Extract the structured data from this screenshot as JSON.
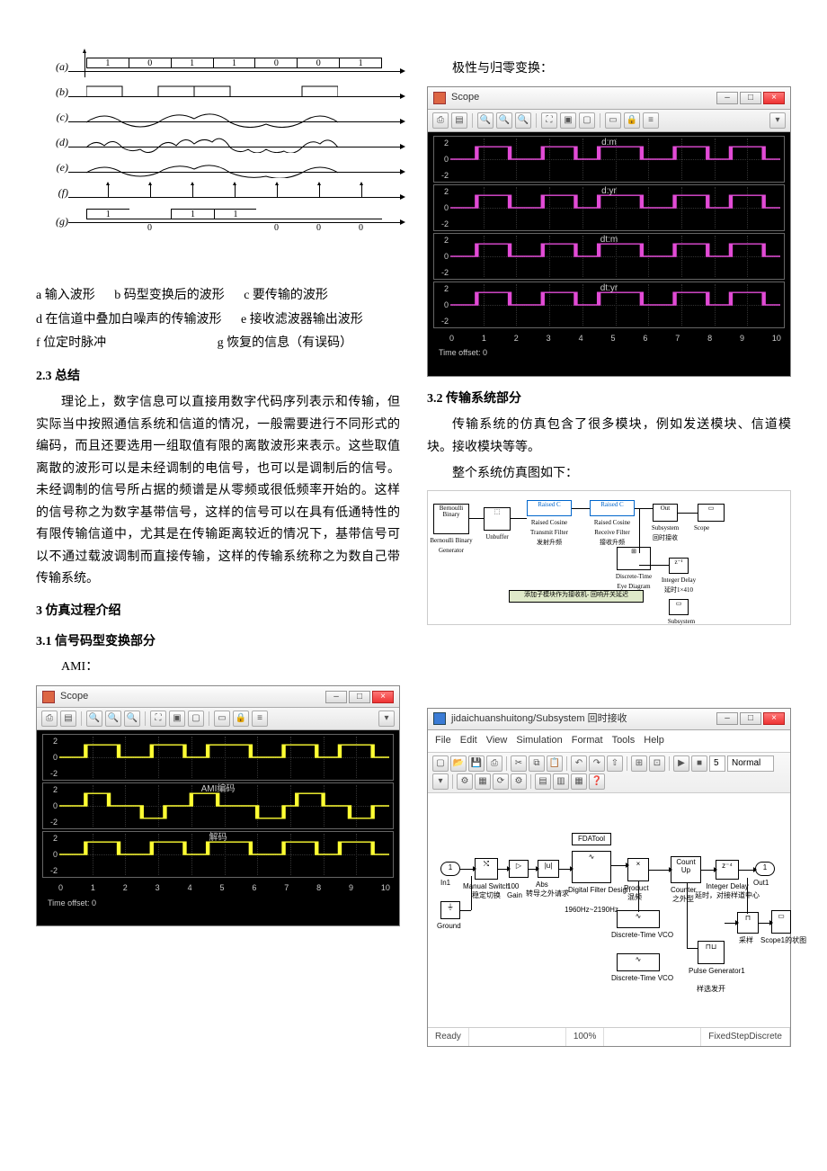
{
  "waveform_diagram": {
    "rows": [
      {
        "label": "(a)",
        "type": "digits",
        "values": [
          "1",
          "0",
          "1",
          "1",
          "0",
          "0",
          "1"
        ]
      },
      {
        "label": "(b)",
        "type": "square"
      },
      {
        "label": "(c)",
        "type": "sine"
      },
      {
        "label": "(d)",
        "type": "noisy"
      },
      {
        "label": "(e)",
        "type": "sine"
      },
      {
        "label": "(f)",
        "type": "arrows"
      },
      {
        "label": "(g)",
        "type": "digits_out",
        "values": [
          "1",
          "",
          "1",
          "1",
          "",
          "",
          ""
        ],
        "below": [
          "",
          "0",
          "",
          "",
          "0",
          "0",
          "0"
        ]
      }
    ]
  },
  "captions": {
    "a": "a 输入波形",
    "b": "b 码型变换后的波形",
    "c": "c 要传输的波形",
    "d": "d 在信道中叠加白噪声的传输波形",
    "e": "e 接收滤波器输出波形",
    "f": "f 位定时脉冲",
    "g": "g 恢复的信息（有误码）"
  },
  "sec23_title": "2.3  总结",
  "sec23_body": "理论上，数字信息可以直接用数字代码序列表示和传输，但实际当中按照通信系统和信道的情况，一般需要进行不同形式的编码，而且还要选用一组取值有限的离散波形来表示。这些取值离散的波形可以是未经调制的电信号，也可以是调制后的信号。未经调制的信号所占据的频谱是从零频或很低频率开始的。这样的信号称之为数字基带信号，这样的信号可以在具有低通特性的有限传输信道中，尤其是在传输距离较近的情况下，基带信号可以不通过载波调制而直接传输，这样的传输系统称之为数自己带传输系统。",
  "sec3_title": "3  仿真过程介绍",
  "sec31_title": "3.1  信号码型变换部分",
  "ami_label": "AMI：",
  "scope_ami": {
    "title": "Scope",
    "panels": [
      {
        "title": ""
      },
      {
        "title": "AMI编码"
      },
      {
        "title": "解码"
      }
    ],
    "yticks": [
      "2",
      "0",
      "-2"
    ],
    "xticks": [
      "0",
      "1",
      "2",
      "3",
      "4",
      "5",
      "6",
      "7",
      "8",
      "9",
      "10"
    ],
    "footer": "Time offset:   0",
    "trace_color": "#ffff33"
  },
  "polarity_label": "极性与归零变换：",
  "scope_pol": {
    "title": "Scope",
    "panels": [
      {
        "title": "d:m"
      },
      {
        "title": "d:yr"
      },
      {
        "title": "dt:m"
      },
      {
        "title": "dt:yr"
      }
    ],
    "yticks": [
      "2",
      "0",
      "-2"
    ],
    "xticks": [
      "0",
      "1",
      "2",
      "3",
      "4",
      "5",
      "6",
      "7",
      "8",
      "9",
      "10"
    ],
    "footer": "Time offset:   0",
    "trace_color": "#e24bd6"
  },
  "sec32_title": "3.2 传输系统部分",
  "sec32_p1": "传输系统的仿真包含了很多模块，例如发送模块、信道模块。接收模块等等。",
  "sec32_p2": "整个系统仿真图如下：",
  "top_diagram": {
    "note": "添加子模块作为接收机- 回响开关延迟"
  },
  "simulink": {
    "title": "jidaichuanshuitong/Subsystem 回时接收",
    "menu": [
      "File",
      "Edit",
      "View",
      "Simulation",
      "Format",
      "Tools",
      "Help"
    ],
    "mode": "Normal",
    "status_left": "Ready",
    "status_mid": "100%",
    "status_right": "FixedStepDiscrete",
    "blocks": {
      "in1": "In1",
      "manual": "Manual Switch",
      "gain": "Gain",
      "abs": "Abs",
      "fda": "FDATool",
      "manual_cn": "稳定切换",
      "abs_cn": "转导之外请求",
      "dfd": "Digital\nFilter Design",
      "dfd_cn": "1960Hz~2190Hz",
      "prod": "Product",
      "prod_cn": "混频",
      "vco1": "Discrete-Time\nVCO",
      "vco2": "Discrete-Time\nVCO",
      "cnt": "Counter",
      "cnt_cn": "之外型",
      "cnt_top": "Count\nUp",
      "delay": "Integer Delay",
      "delay_cn": "延时，对接样道中心",
      "z": "z",
      "out1": "Out1",
      "pulse": "Pulse\nGenerator1",
      "pulse_cn": "样选发开",
      "scope": "Scope1的状图",
      "gnd": "Ground",
      "smp": "采样"
    }
  }
}
